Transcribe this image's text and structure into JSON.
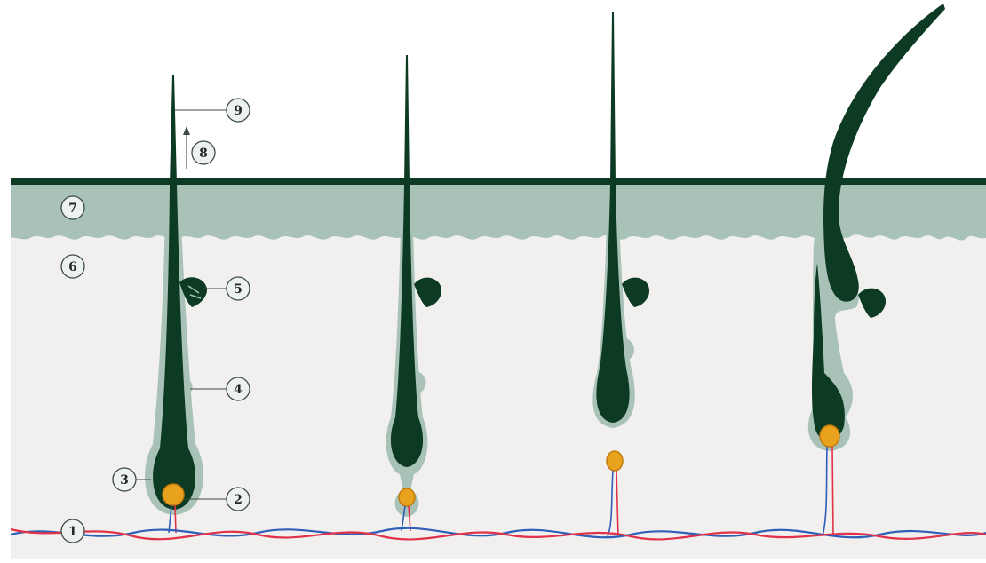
{
  "colors": {
    "background": "#ffffff",
    "dermis": "#f1f0ef",
    "epidermis": "#a9c2b7",
    "sheath": "#a9c2b7",
    "hair": "#0c3a22",
    "papilla": "#e8a21d",
    "papilla_outline": "#c27a0c",
    "artery": "#e0334a",
    "vein": "#2f5fb8",
    "callout_fill": "#eef2ee",
    "callout_stroke": "#3b4a42"
  },
  "callouts": [
    {
      "id": "blood-vessels",
      "label": "1"
    },
    {
      "id": "dermal-papilla",
      "label": "2"
    },
    {
      "id": "hair-bulb",
      "label": "3"
    },
    {
      "id": "bulge",
      "label": "4"
    },
    {
      "id": "sebaceous-gland",
      "label": "5"
    },
    {
      "id": "dermis",
      "label": "6"
    },
    {
      "id": "epidermis",
      "label": "7"
    },
    {
      "id": "growth-direction",
      "label": "8"
    },
    {
      "id": "hair-shaft",
      "label": "9"
    }
  ]
}
